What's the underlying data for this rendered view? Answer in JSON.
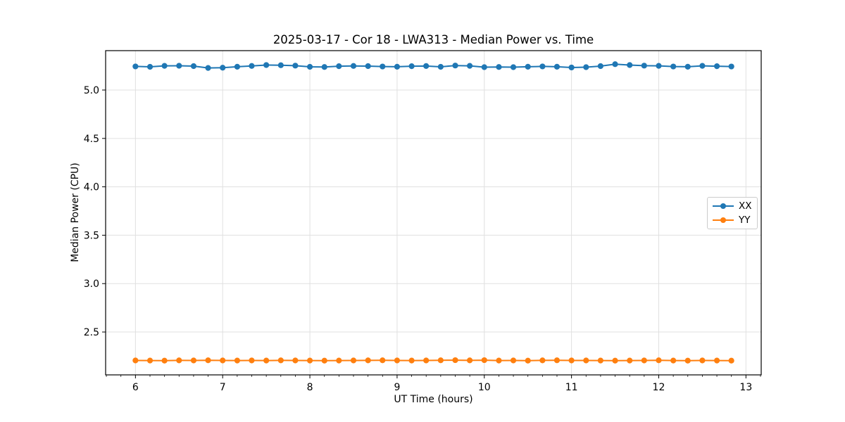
{
  "figure": {
    "title": "2025-03-17 - Cor 18 - LWA313 - Median Power vs. Time"
  },
  "chart_data": {
    "type": "line",
    "title": "2025-03-17 - Cor 18 - LWA313 - Median Power vs. Time",
    "xlabel": "UT Time (hours)",
    "ylabel": "Median Power (CPU)",
    "xlim": [
      5.658,
      13.175
    ],
    "ylim": [
      2.057,
      5.407
    ],
    "xticks": [
      6,
      7,
      8,
      9,
      10,
      11,
      12,
      13
    ],
    "yticks": [
      2.5,
      3.0,
      3.5,
      4.0,
      4.5,
      5.0
    ],
    "minor_xtick_step": 0.166667,
    "grid": true,
    "grid_color": "#e0e0e0",
    "legend": {
      "position": "center-right"
    },
    "x": [
      6.0,
      6.167,
      6.333,
      6.5,
      6.667,
      6.833,
      7.0,
      7.167,
      7.333,
      7.5,
      7.667,
      7.833,
      8.0,
      8.167,
      8.333,
      8.5,
      8.667,
      8.833,
      9.0,
      9.167,
      9.333,
      9.5,
      9.667,
      9.833,
      10.0,
      10.167,
      10.333,
      10.5,
      10.667,
      10.833,
      11.0,
      11.167,
      11.333,
      11.5,
      11.667,
      11.833,
      12.0,
      12.167,
      12.333,
      12.5,
      12.667,
      12.833
    ],
    "series": [
      {
        "name": "XX",
        "color": "#1f77b4",
        "values": [
          5.244,
          5.24,
          5.25,
          5.251,
          5.247,
          5.228,
          5.231,
          5.241,
          5.249,
          5.258,
          5.256,
          5.252,
          5.24,
          5.238,
          5.246,
          5.249,
          5.247,
          5.243,
          5.241,
          5.246,
          5.248,
          5.24,
          5.253,
          5.25,
          5.236,
          5.238,
          5.236,
          5.241,
          5.244,
          5.241,
          5.233,
          5.236,
          5.247,
          5.267,
          5.258,
          5.252,
          5.25,
          5.243,
          5.241,
          5.25,
          5.246,
          5.243
        ]
      },
      {
        "name": "YY",
        "color": "#ff7f0e",
        "values": [
          2.206,
          2.205,
          2.204,
          2.207,
          2.206,
          2.208,
          2.206,
          2.205,
          2.206,
          2.205,
          2.207,
          2.206,
          2.205,
          2.204,
          2.205,
          2.206,
          2.207,
          2.208,
          2.206,
          2.205,
          2.206,
          2.208,
          2.209,
          2.207,
          2.209,
          2.205,
          2.206,
          2.204,
          2.207,
          2.208,
          2.206,
          2.206,
          2.205,
          2.204,
          2.205,
          2.206,
          2.208,
          2.205,
          2.204,
          2.206,
          2.205,
          2.204
        ]
      }
    ]
  }
}
